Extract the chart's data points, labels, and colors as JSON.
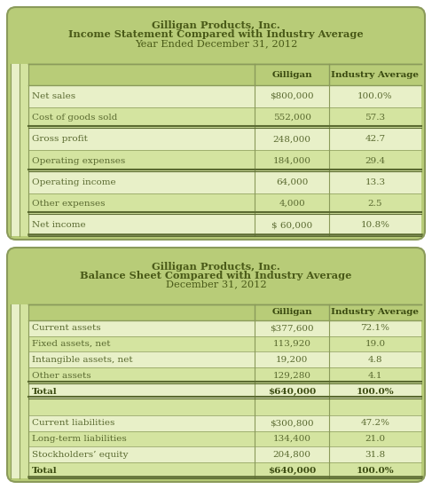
{
  "table1_title_lines": [
    "Gilligan Products, Inc.",
    "Income Statement Compared with Industry Average",
    "Year Ended December 31, 2012"
  ],
  "table1_col_headers": [
    "Gilligan",
    "Industry Average"
  ],
  "table1_rows": [
    [
      "Net sales",
      "$800,000",
      "100.0%"
    ],
    [
      "Cost of goods sold",
      "552,000",
      "57.3"
    ],
    [
      "Gross profit",
      "248,000",
      "42.7"
    ],
    [
      "Operating expenses",
      "184,000",
      "29.4"
    ],
    [
      "Operating income",
      "64,000",
      "13.3"
    ],
    [
      "Other expenses",
      "4,000",
      "2.5"
    ],
    [
      "Net income",
      "$ 60,000",
      "10.8%"
    ]
  ],
  "table1_double_after": [
    1,
    3,
    5
  ],
  "table1_double_bottom": true,
  "table2_title_lines": [
    "Gilligan Products, Inc.",
    "Balance Sheet Compared with Industry Average",
    "December 31, 2012"
  ],
  "table2_col_headers": [
    "Gilligan",
    "Industry Average"
  ],
  "table2_rows": [
    [
      "Current assets",
      "$377,600",
      "72.1%"
    ],
    [
      "Fixed assets, net",
      "113,920",
      "19.0"
    ],
    [
      "Intangible assets, net",
      "19,200",
      "4.8"
    ],
    [
      "Other assets",
      "129,280",
      "4.1"
    ],
    [
      "Total",
      "$640,000",
      "100.0%"
    ],
    [
      "",
      "",
      ""
    ],
    [
      "Current liabilities",
      "$300,800",
      "47.2%"
    ],
    [
      "Long-term liabilities",
      "134,400",
      "21.0"
    ],
    [
      "Stockholders’ equity",
      "204,800",
      "31.8"
    ],
    [
      "Total",
      "$640,000",
      "100.0%"
    ]
  ],
  "table2_double_after": [
    3,
    4
  ],
  "table2_double_bottom": true,
  "table2_bold_rows": [
    4,
    9
  ],
  "bg_green": "#b8cc78",
  "row_light": "#e8f0c8",
  "row_dark": "#d4e4a0",
  "white": "#ffffff",
  "border_dark": "#5a6a30",
  "border_med": "#8a9a5a",
  "text_dark": "#3a4a10",
  "text_med": "#5a6a30",
  "title_color": "#4a5a18"
}
